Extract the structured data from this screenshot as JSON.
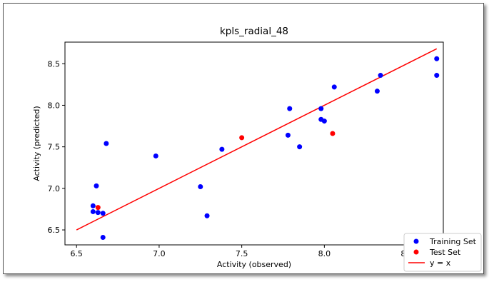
{
  "chart_data": {
    "type": "scatter",
    "title": "kpls_radial_48",
    "xlabel": "Activity (observed)",
    "ylabel": "Activity (predicted)",
    "xlim": [
      6.43,
      8.72
    ],
    "ylim": [
      6.32,
      8.76
    ],
    "xticks": [
      "6.5",
      "7.0",
      "7.5",
      "8.0",
      "8.5"
    ],
    "yticks": [
      "6.5",
      "7.0",
      "7.5",
      "8.0",
      "8.5"
    ],
    "series": [
      {
        "name": "Training Set",
        "color": "#0000ff",
        "points": [
          [
            6.6,
            6.79
          ],
          [
            6.6,
            6.72
          ],
          [
            6.62,
            7.03
          ],
          [
            6.63,
            6.71
          ],
          [
            6.66,
            6.7
          ],
          [
            6.66,
            6.41
          ],
          [
            6.68,
            7.54
          ],
          [
            6.98,
            7.39
          ],
          [
            7.25,
            7.02
          ],
          [
            7.29,
            6.67
          ],
          [
            7.38,
            7.47
          ],
          [
            7.78,
            7.64
          ],
          [
            7.79,
            7.96
          ],
          [
            7.85,
            7.5
          ],
          [
            7.98,
            7.83
          ],
          [
            7.98,
            7.96
          ],
          [
            8.0,
            7.81
          ],
          [
            8.06,
            8.22
          ],
          [
            8.32,
            8.17
          ],
          [
            8.34,
            8.36
          ],
          [
            8.68,
            8.36
          ],
          [
            8.68,
            8.56
          ]
        ]
      },
      {
        "name": "Test Set",
        "color": "#ff0000",
        "points": [
          [
            6.63,
            6.77
          ],
          [
            7.5,
            7.61
          ],
          [
            8.05,
            7.66
          ]
        ]
      }
    ],
    "line": {
      "name": "y = x",
      "color": "#ff0000",
      "from": 6.5,
      "to": 8.68
    },
    "legend_position": "lower-right"
  }
}
